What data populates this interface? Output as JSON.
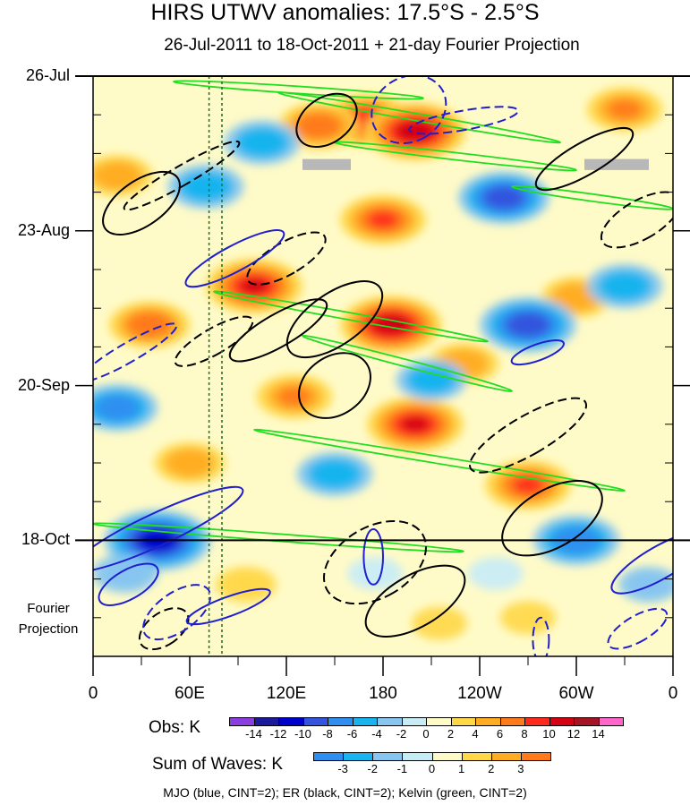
{
  "title": "HIRS UTWV anomalies: 17.5°S - 2.5°S",
  "subtitle": "26-Jul-2011 to 18-Oct-2011 + 21-day Fourier Projection",
  "y_axis": {
    "labels": [
      "26-Jul",
      "23-Aug",
      "20-Sep",
      "18-Oct"
    ]
  },
  "x_axis": {
    "labels": [
      "0",
      "60E",
      "120E",
      "180",
      "120W",
      "60W",
      "0"
    ]
  },
  "projection_label_line1": "Fourier",
  "projection_label_line2": "Projection",
  "obs_colorbar": {
    "title": "Obs: K",
    "ticks": [
      "-14",
      "-12",
      "-10",
      "-8",
      "-6",
      "-4",
      "-2",
      "0",
      "2",
      "4",
      "6",
      "8",
      "10",
      "12",
      "14"
    ],
    "colors": [
      "#8a3ee0",
      "#1a1a9a",
      "#0000cc",
      "#3355dd",
      "#2f8ff0",
      "#17b4ef",
      "#86c6f0",
      "#c8ecf6",
      "#fffbc8",
      "#ffd84a",
      "#ffac23",
      "#ff7a1d",
      "#ff2a1c",
      "#d40014",
      "#a51424",
      "#ff66cc"
    ]
  },
  "waves_colorbar": {
    "title": "Sum of Waves: K",
    "ticks": [
      "-3",
      "-2",
      "-1",
      "0",
      "1",
      "2",
      "3"
    ],
    "colors": [
      "#2f8ff0",
      "#17b4ef",
      "#86c6f0",
      "#c8ecf6",
      "#fffbc8",
      "#ffd84a",
      "#ffac23",
      "#ff7a1d"
    ]
  },
  "footer": "MJO (blue, CINT=2); ER (black, CINT=2); Kelvin (green, CINT=2)",
  "chart_data": {
    "type": "heatmap",
    "title": "HIRS UTWV anomalies: 17.5°S - 2.5°S",
    "subtitle": "26-Jul-2011 to 18-Oct-2011 + 21-day Fourier Projection",
    "x_axis": {
      "quantity": "longitude",
      "range_degE": [
        0,
        360
      ],
      "ticks_degE": [
        0,
        60,
        120,
        180,
        240,
        300,
        360
      ],
      "tick_labels": [
        "0",
        "60E",
        "120E",
        "180",
        "120W",
        "60W",
        "0"
      ]
    },
    "y_axis": {
      "quantity": "time",
      "range_days_from_26Jul2011": [
        0,
        105
      ],
      "ticks_days": [
        0,
        28,
        56,
        84
      ],
      "tick_labels": [
        "26-Jul",
        "23-Aug",
        "20-Sep",
        "18-Oct"
      ],
      "direction": "downward"
    },
    "forecast_start_day": 84,
    "reference_lines_degE": [
      72,
      80
    ],
    "units": "K",
    "legend": [
      {
        "name": "MJO",
        "color": "#1f1fd0",
        "contour_interval": 2
      },
      {
        "name": "ER",
        "color": "#000000",
        "contour_interval": 2
      },
      {
        "name": "Kelvin",
        "color": "#22dd22",
        "contour_interval": 2
      }
    ],
    "mjo_contours": [
      {
        "lon": 88,
        "day": 33,
        "dlon": 8,
        "dday": 10,
        "rot": 62,
        "sign": "pos"
      },
      {
        "lon": 40,
        "day": 82,
        "dlon": 10,
        "dday": 17,
        "rot": 65,
        "sign": "pos"
      },
      {
        "lon": 84,
        "day": 96,
        "dlon": 6,
        "dday": 8,
        "rot": 70,
        "sign": "pos"
      },
      {
        "lon": 22,
        "day": 92,
        "dlon": 9,
        "dday": 6,
        "rot": 60,
        "sign": "pos"
      },
      {
        "lon": 174,
        "day": 87,
        "dlon": 6,
        "dday": 5,
        "rot": 0,
        "sign": "pos"
      },
      {
        "lon": 196,
        "day": 6,
        "dlon": 20,
        "dday": 7,
        "rot": 60,
        "sign": "neg"
      },
      {
        "lon": 230,
        "day": 8,
        "dlon": 6,
        "dday": 10,
        "rot": 80,
        "sign": "neg"
      },
      {
        "lon": 276,
        "day": 50,
        "dlon": 5,
        "dday": 5,
        "rot": 70,
        "sign": "pos"
      },
      {
        "lon": 352,
        "day": 88,
        "dlon": 10,
        "dday": 10,
        "rot": 60,
        "sign": "pos"
      },
      {
        "lon": 52,
        "day": 97,
        "dlon": 12,
        "dday": 7,
        "rot": 55,
        "sign": "neg"
      },
      {
        "lon": 278,
        "day": 102,
        "dlon": 5,
        "dday": 4,
        "rot": 0,
        "sign": "neg"
      },
      {
        "lon": 338,
        "day": 100,
        "dlon": 8,
        "dday": 6,
        "rot": 60,
        "sign": "neg"
      },
      {
        "lon": 22,
        "day": 50,
        "dlon": 6,
        "dday": 10,
        "rot": 60,
        "sign": "neg"
      }
    ],
    "er_contours": [
      {
        "lon": 30,
        "day": 23,
        "dlon": 14,
        "dday": 8,
        "rot": 55,
        "sign": "pos"
      },
      {
        "lon": 150,
        "day": 44,
        "dlon": 16,
        "dday": 10,
        "rot": 55,
        "sign": "pos"
      },
      {
        "lon": 115,
        "day": 46,
        "dlon": 10,
        "dday": 10,
        "rot": 60,
        "sign": "pos"
      },
      {
        "lon": 150,
        "day": 56,
        "dlon": 18,
        "dday": 7,
        "rot": 55,
        "sign": "pos"
      },
      {
        "lon": 200,
        "day": 95,
        "dlon": 16,
        "dday": 10,
        "rot": 60,
        "sign": "pos"
      },
      {
        "lon": 285,
        "day": 80,
        "dlon": 18,
        "dday": 10,
        "rot": 60,
        "sign": "pos"
      },
      {
        "lon": 305,
        "day": 15,
        "dlon": 10,
        "dday": 10,
        "rot": 60,
        "sign": "pos"
      },
      {
        "lon": 55,
        "day": 18,
        "dlon": 6,
        "dday": 12,
        "rot": 60,
        "sign": "neg"
      },
      {
        "lon": 75,
        "day": 48,
        "dlon": 8,
        "dday": 8,
        "rot": 60,
        "sign": "neg"
      },
      {
        "lon": 120,
        "day": 33,
        "dlon": 10,
        "dday": 8,
        "rot": 60,
        "sign": "neg"
      },
      {
        "lon": 175,
        "day": 88,
        "dlon": 22,
        "dday": 10,
        "rot": 60,
        "sign": "neg"
      },
      {
        "lon": 270,
        "day": 65,
        "dlon": 12,
        "dday": 12,
        "rot": 60,
        "sign": "neg"
      },
      {
        "lon": 340,
        "day": 26,
        "dlon": 12,
        "dday": 8,
        "rot": 60,
        "sign": "neg"
      },
      {
        "lon": 44,
        "day": 100,
        "dlon": 10,
        "dday": 5,
        "rot": 55,
        "sign": "neg"
      },
      {
        "lon": 145,
        "day": 8,
        "dlon": 14,
        "dday": 6,
        "rot": 55,
        "sign": "pos"
      }
    ],
    "kelvin_bands": [
      {
        "lon0": 50,
        "day0": 1,
        "lon1": 205,
        "day1": 4
      },
      {
        "lon0": 115,
        "day0": 3,
        "lon1": 290,
        "day1": 12
      },
      {
        "lon0": 150,
        "day0": 12,
        "lon1": 300,
        "day1": 17
      },
      {
        "lon0": 260,
        "day0": 20,
        "lon1": 360,
        "day1": 24
      },
      {
        "lon0": 75,
        "day0": 39,
        "lon1": 245,
        "day1": 48
      },
      {
        "lon0": 130,
        "day0": 47,
        "lon1": 260,
        "day1": 57
      },
      {
        "lon0": 100,
        "day0": 64,
        "lon1": 330,
        "day1": 75
      },
      {
        "lon0": 0,
        "day0": 81,
        "lon1": 230,
        "day1": 86
      }
    ],
    "missing_data_boxes": [
      {
        "lon0": 130,
        "lon1": 160,
        "day0": 15,
        "day1": 17
      },
      {
        "lon0": 305,
        "lon1": 345,
        "day0": 15,
        "day1": 17
      }
    ],
    "anomaly_blobs_K": [
      {
        "lon": 170,
        "day": 8,
        "value": 9
      },
      {
        "lon": 200,
        "day": 10,
        "value": 11
      },
      {
        "lon": 180,
        "day": 26,
        "value": 8
      },
      {
        "lon": 100,
        "day": 38,
        "value": 10
      },
      {
        "lon": 185,
        "day": 45,
        "value": 11
      },
      {
        "lon": 200,
        "day": 63,
        "value": 10
      },
      {
        "lon": 270,
        "day": 74,
        "value": 8
      },
      {
        "lon": 35,
        "day": 45,
        "value": 7
      },
      {
        "lon": 140,
        "day": 9,
        "value": 7
      },
      {
        "lon": 125,
        "day": 58,
        "value": 6
      },
      {
        "lon": 230,
        "day": 52,
        "value": 5
      },
      {
        "lon": 330,
        "day": 6,
        "value": 6
      },
      {
        "lon": 15,
        "day": 18,
        "value": 5
      },
      {
        "lon": 300,
        "day": 40,
        "value": 5
      },
      {
        "lon": 60,
        "day": 70,
        "value": 5
      },
      {
        "lon": 95,
        "day": 92,
        "value": 3
      },
      {
        "lon": 270,
        "day": 98,
        "value": 2
      },
      {
        "lon": 215,
        "day": 99,
        "value": 2
      },
      {
        "lon": 170,
        "day": 100,
        "value": 1
      },
      {
        "lon": 40,
        "day": 84,
        "value": -12
      },
      {
        "lon": 270,
        "day": 45,
        "value": -10
      },
      {
        "lon": 255,
        "day": 22,
        "value": -9
      },
      {
        "lon": 330,
        "day": 38,
        "value": -6
      },
      {
        "lon": 300,
        "day": 84,
        "value": -8
      },
      {
        "lon": 15,
        "day": 60,
        "value": -7
      },
      {
        "lon": 70,
        "day": 20,
        "value": -6
      },
      {
        "lon": 150,
        "day": 72,
        "value": -6
      },
      {
        "lon": 210,
        "day": 55,
        "value": -5
      },
      {
        "lon": 105,
        "day": 12,
        "value": -6
      },
      {
        "lon": 20,
        "day": 90,
        "value": -4
      },
      {
        "lon": 345,
        "day": 92,
        "value": -3
      },
      {
        "lon": 175,
        "day": 90,
        "value": -2
      },
      {
        "lon": 250,
        "day": 90,
        "value": -2
      }
    ]
  }
}
